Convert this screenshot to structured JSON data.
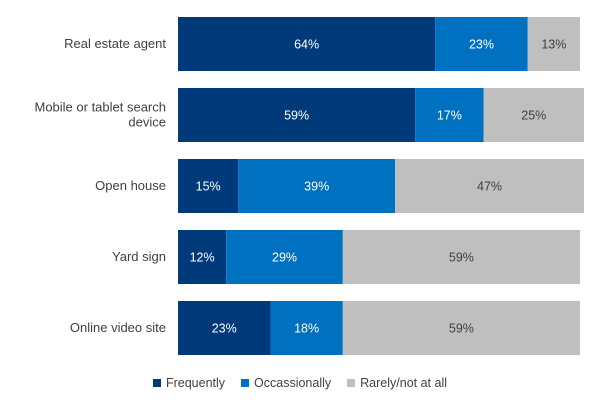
{
  "chart_data": {
    "type": "bar",
    "orientation": "horizontal",
    "stacked": true,
    "title": "",
    "xlabel": "",
    "ylabel": "",
    "xlim": [
      0,
      100
    ],
    "grid": false,
    "legend_position": "bottom",
    "categories": [
      [
        "Real estate agent"
      ],
      [
        "Mobile or tablet search",
        "device"
      ],
      [
        "Open house"
      ],
      [
        "Yard sign"
      ],
      [
        "Online video site"
      ]
    ],
    "series": [
      {
        "name": "Frequently",
        "color": "#003a7a",
        "label_color": "#ffffff",
        "values": [
          64,
          59,
          15,
          12,
          23
        ]
      },
      {
        "name": "Occassionally",
        "color": "#0070c0",
        "label_color": "#ffffff",
        "values": [
          23,
          17,
          39,
          29,
          18
        ]
      },
      {
        "name": "Rarely/not at all",
        "color": "#bfbfbf",
        "label_color": "#404040",
        "values": [
          13,
          25,
          47,
          59,
          59
        ]
      }
    ],
    "value_suffix": "%"
  }
}
